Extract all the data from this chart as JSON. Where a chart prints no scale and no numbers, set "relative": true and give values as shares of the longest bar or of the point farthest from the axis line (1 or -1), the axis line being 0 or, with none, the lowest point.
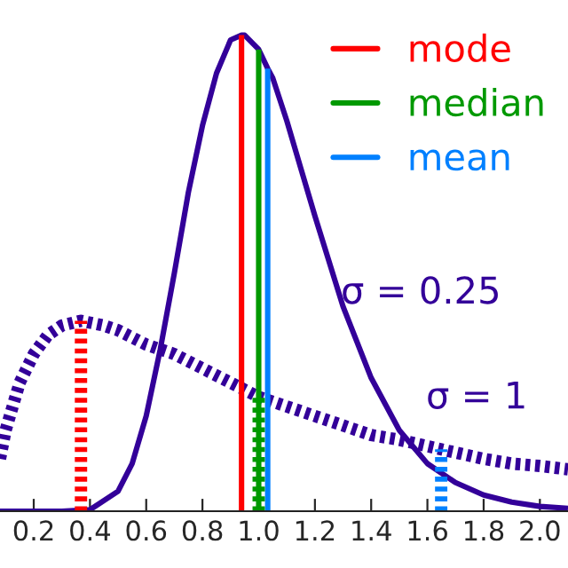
{
  "chart_data": {
    "type": "line",
    "relative": true,
    "xlim": [
      0.08,
      2.1
    ],
    "xticks": [
      {
        "value": 0.2,
        "label": "0.2"
      },
      {
        "value": 0.4,
        "label": "0.4"
      },
      {
        "value": 0.6,
        "label": "0.6"
      },
      {
        "value": 0.8,
        "label": "0.8"
      },
      {
        "value": 1.0,
        "label": "1.0"
      },
      {
        "value": 1.2,
        "label": "1.2"
      },
      {
        "value": 1.4,
        "label": "1.4"
      },
      {
        "value": 1.6,
        "label": "1.6"
      },
      {
        "value": 1.8,
        "label": "1.8"
      },
      {
        "value": 2.0,
        "label": "2.0"
      }
    ],
    "tick_labels": "x",
    "legend": "top right",
    "series": [
      {
        "color": "#330099",
        "line_style": "solid",
        "x": [
          0.08,
          0.3,
          0.4,
          0.5,
          0.55,
          0.6,
          0.65,
          0.7,
          0.75,
          0.8,
          0.85,
          0.9,
          0.939,
          0.95,
          1.0,
          1.032,
          1.05,
          1.1,
          1.15,
          1.2,
          1.3,
          1.4,
          1.5,
          1.6,
          1.7,
          1.8,
          1.9,
          2.0,
          2.1
        ],
        "values": [
          0,
          0,
          0.003,
          0.042,
          0.1,
          0.2,
          0.34,
          0.5,
          0.67,
          0.81,
          0.92,
          0.99,
          1.0,
          1.0,
          0.97,
          0.93,
          0.91,
          0.82,
          0.72,
          0.62,
          0.43,
          0.28,
          0.17,
          0.1,
          0.06,
          0.034,
          0.019,
          0.01,
          0.006
        ]
      },
      {
        "color": "#330099",
        "line_style": "dotted",
        "x": [
          0.08,
          0.1,
          0.15,
          0.2,
          0.25,
          0.3,
          0.368,
          0.45,
          0.5,
          0.6,
          0.7,
          0.8,
          0.9,
          1.0,
          1.1,
          1.2,
          1.3,
          1.4,
          1.5,
          1.649,
          1.8,
          1.9,
          2.0,
          2.1
        ],
        "values": [
          0.11,
          0.17,
          0.27,
          0.33,
          0.37,
          0.39,
          0.4,
          0.39,
          0.38,
          0.35,
          0.33,
          0.3,
          0.27,
          0.24,
          0.22,
          0.2,
          0.18,
          0.16,
          0.15,
          0.13,
          0.11,
          0.1,
          0.095,
          0.088
        ]
      },
      {
        "name": "mode",
        "color": "#ff0000",
        "line_style": "solid",
        "x": [
          0.939,
          0.939
        ],
        "values": [
          0,
          1.0
        ]
      },
      {
        "name": "median",
        "color": "#009900",
        "line_style": "solid",
        "x": [
          1.0,
          1.0
        ],
        "values": [
          0,
          0.97
        ]
      },
      {
        "name": "mean",
        "color": "#0080ff",
        "line_style": "solid",
        "x": [
          1.032,
          1.032
        ],
        "values": [
          0,
          0.93
        ]
      },
      {
        "color": "#ff0000",
        "line_style": "dotted",
        "x": [
          0.368,
          0.368
        ],
        "values": [
          0,
          0.4
        ]
      },
      {
        "color": "#009900",
        "line_style": "dotted",
        "x": [
          1.0,
          1.0
        ],
        "values": [
          0,
          0.24
        ]
      },
      {
        "color": "#0080ff",
        "line_style": "dotted",
        "x": [
          1.649,
          1.649
        ],
        "values": [
          0,
          0.13
        ]
      }
    ],
    "annotations": [
      "σ = 0.25",
      "σ = 1"
    ]
  }
}
